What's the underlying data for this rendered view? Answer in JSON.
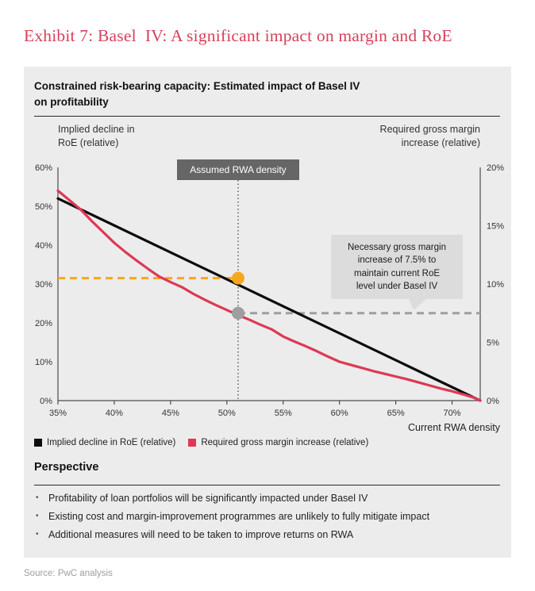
{
  "page": {
    "title": "Exhibit 7: Basel  IV: A significant impact on margin and RoE",
    "source": "Source: PwC analysis"
  },
  "panel": {
    "heading_lines": [
      "Constrained risk-bearing capacity: Estimated impact of Basel IV",
      "on profitability"
    ]
  },
  "chart_data": {
    "type": "line",
    "title": "Constrained risk-bearing capacity: Estimated impact of Basel IV on profitability",
    "grid": false,
    "legend_position": "bottom-left",
    "x_axis": {
      "title": "Current RWA density",
      "range": [
        35,
        72.5
      ],
      "tick_values": [
        35,
        40,
        45,
        50,
        55,
        60,
        65,
        70
      ],
      "tick_labels": [
        "35%",
        "40%",
        "45%",
        "50%",
        "55%",
        "60%",
        "65%",
        "70%"
      ]
    },
    "y_left": {
      "title": "Implied decline in RoE (relative)",
      "title_lines": [
        "Implied decline in",
        "RoE (relative)"
      ],
      "range": [
        0,
        60
      ],
      "tick_values": [
        60,
        50,
        40,
        30,
        20,
        10,
        0
      ],
      "tick_labels": [
        "60%",
        "50%",
        "40%",
        "30%",
        "20%",
        "10%",
        "0%"
      ]
    },
    "y_right": {
      "title": "Required gross margin increase (relative)",
      "title_lines": [
        "Required gross margin",
        "increase (relative)"
      ],
      "range": [
        0,
        20
      ],
      "tick_values": [
        20,
        15,
        10,
        5,
        0
      ],
      "tick_labels": [
        "20%",
        "15%",
        "10%",
        "5%",
        "0%"
      ]
    },
    "series": [
      {
        "name": "Implied decline in RoE (relative)",
        "axis": "left",
        "color": "#0d0d0d",
        "points": [
          [
            35,
            52
          ],
          [
            72.5,
            0
          ]
        ]
      },
      {
        "name": "Required gross margin increase (relative)",
        "axis": "left",
        "color": "#dd3954",
        "points": [
          [
            35,
            54
          ],
          [
            36,
            51.6
          ],
          [
            37,
            49.2
          ],
          [
            38,
            46.2
          ],
          [
            39,
            43.4
          ],
          [
            40,
            40.6
          ],
          [
            41,
            38.2
          ],
          [
            42,
            36
          ],
          [
            43,
            33.9
          ],
          [
            44,
            31.9
          ],
          [
            45,
            30.5
          ],
          [
            46,
            29.2
          ],
          [
            47,
            27.5
          ],
          [
            48,
            26
          ],
          [
            49,
            24.6
          ],
          [
            50,
            23.3
          ],
          [
            51,
            22
          ],
          [
            52,
            20.8
          ],
          [
            53,
            19.5
          ],
          [
            54,
            18.3
          ],
          [
            55,
            16.5
          ],
          [
            56,
            15.2
          ],
          [
            57,
            14
          ],
          [
            58,
            12.7
          ],
          [
            59,
            11.3
          ],
          [
            60,
            10
          ],
          [
            61,
            9.2
          ],
          [
            62,
            8.4
          ],
          [
            63,
            7.6
          ],
          [
            64,
            6.9
          ],
          [
            65,
            6.2
          ],
          [
            66,
            5.5
          ],
          [
            67,
            4.7
          ],
          [
            68,
            3.9
          ],
          [
            69,
            3.1
          ],
          [
            70,
            2.4
          ],
          [
            71,
            1.6
          ],
          [
            72,
            0.7
          ],
          [
            72.5,
            0
          ]
        ]
      }
    ],
    "guides": {
      "vline_x": 51,
      "orange": {
        "y_left": 31.5,
        "color": "#f5a71f"
      },
      "gray": {
        "y_right": 7.5,
        "color": "#9e9e9e"
      }
    },
    "markers": [
      {
        "x": 51,
        "axis": "left",
        "y": 31.5,
        "color": "#f5a71f"
      },
      {
        "x": 51,
        "axis": "right",
        "y": 7.5,
        "color": "#9e9e9e"
      }
    ]
  },
  "annotations": {
    "rwa_label": "Assumed RWA density",
    "bubble_lines": [
      "Necessary gross margin",
      "increase of 7.5% to",
      "maintain current RoE",
      "level under Basel IV"
    ]
  },
  "legend": {
    "items": [
      {
        "label": "Implied decline in RoE (relative)",
        "color": "#0d0d0d"
      },
      {
        "label": "Required gross margin increase (relative)",
        "color": "#dd3954"
      }
    ]
  },
  "perspective": {
    "heading": "Perspective",
    "bullets": [
      "Profitability of loan portfolios will be significantly impacted under Basel IV",
      "Existing cost and margin-improvement programmes are unlikely to fully mitigate impact",
      "Additional measures will need to be taken to improve returns on RWA"
    ]
  },
  "colors": {
    "title_text": "#d7415a",
    "panel_bg": "#ececec",
    "rwa_label_bg": "#666666",
    "bubble_bg": "#dcdcdc",
    "axis": "#4d4d4d"
  }
}
